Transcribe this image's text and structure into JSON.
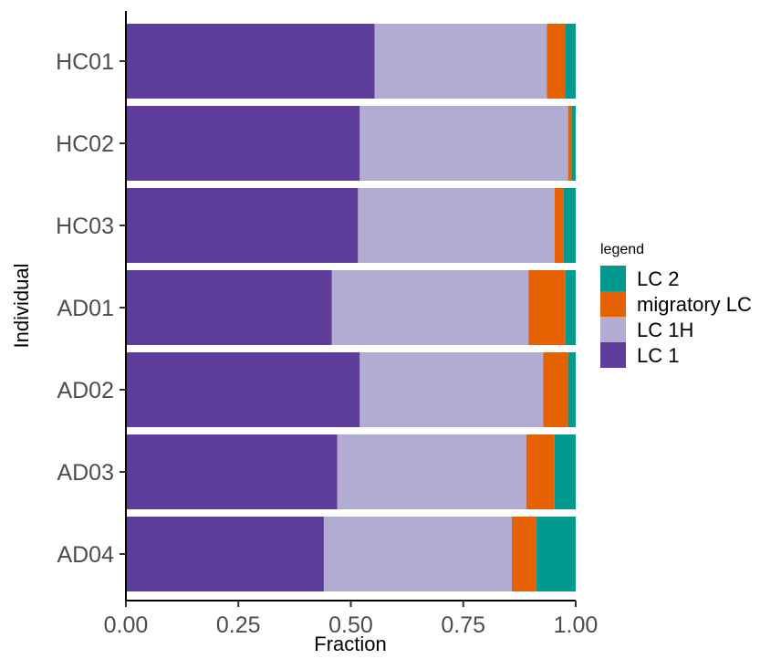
{
  "chart_data": {
    "type": "bar",
    "orientation": "horizontal",
    "stacked": true,
    "categories": [
      "HC01",
      "HC02",
      "HC03",
      "AD01",
      "AD02",
      "AD03",
      "AD04"
    ],
    "series": [
      {
        "name": "LC 1",
        "color": "#5e3c99",
        "values": [
          0.553,
          0.52,
          0.516,
          0.458,
          0.52,
          0.47,
          0.44
        ]
      },
      {
        "name": "LC 1H",
        "color": "#b2abd2",
        "values": [
          0.383,
          0.463,
          0.437,
          0.437,
          0.408,
          0.42,
          0.418
        ]
      },
      {
        "name": "migratory LC",
        "color": "#e66101",
        "values": [
          0.04,
          0.008,
          0.02,
          0.082,
          0.055,
          0.063,
          0.055
        ]
      },
      {
        "name": "LC 2",
        "color": "#009990",
        "values": [
          0.024,
          0.009,
          0.027,
          0.023,
          0.017,
          0.047,
          0.087
        ]
      }
    ],
    "xlabel": "Fraction",
    "ylabel": "Individual",
    "xlim": [
      0,
      1
    ],
    "xticks": [
      "0.00",
      "0.25",
      "0.50",
      "0.75",
      "1.00"
    ],
    "xtick_values": [
      0,
      0.25,
      0.5,
      0.75,
      1.0
    ],
    "grid": false,
    "legend": {
      "title": "legend",
      "position": "right",
      "entries": [
        "LC 2",
        "migratory LC",
        "LC 1H",
        "LC 1"
      ]
    }
  }
}
